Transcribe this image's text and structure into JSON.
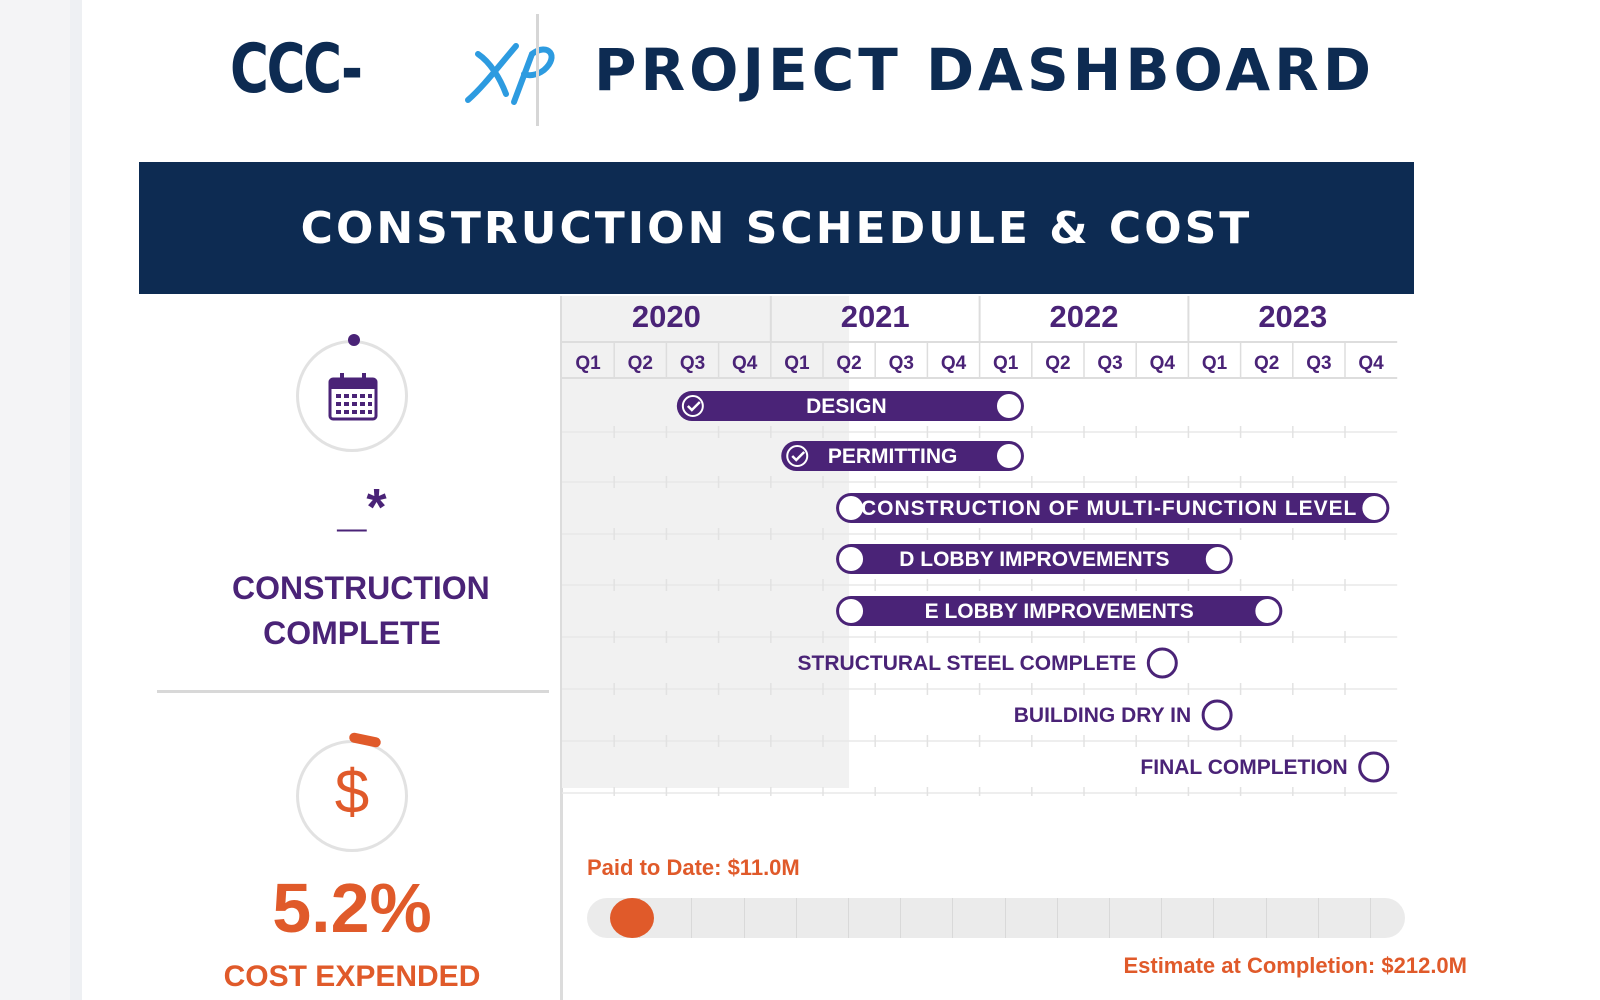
{
  "header": {
    "logo_text": "CCC-",
    "logo_script": "XP",
    "title": "PROJECT DASHBOARD"
  },
  "banner": {
    "title": "CONSTRUCTION SCHEDULE & COST"
  },
  "schedule_panel": {
    "icon": "calendar-icon",
    "value": "_*",
    "label_line1": "CONSTRUCTION",
    "label_line2": "COMPLETE"
  },
  "cost_panel": {
    "icon": "dollar-icon",
    "value": "5.2%",
    "label": "COST EXPENDED",
    "paid_label": "Paid to Date: $11.0M",
    "estimate_label": "Estimate at Completion: $212.0M",
    "paid_fraction": 0.052
  },
  "timeline": {
    "years": [
      "2020",
      "2021",
      "2022",
      "2023"
    ],
    "quarters": [
      "Q1",
      "Q2",
      "Q3",
      "Q4",
      "Q1",
      "Q2",
      "Q3",
      "Q4",
      "Q1",
      "Q2",
      "Q3",
      "Q4",
      "Q1",
      "Q2",
      "Q3",
      "Q4"
    ],
    "elapsed_through_quarter": 5.5,
    "tasks": [
      {
        "label": "DESIGN",
        "start_q": 2.2,
        "end_q": 8.85,
        "status": "complete"
      },
      {
        "label": "PERMITTING",
        "start_q": 4.2,
        "end_q": 8.85,
        "status": "complete"
      },
      {
        "label": "CONSTRUCTION OF MULTI-FUNCTION LEVEL",
        "start_q": 5.25,
        "end_q": 15.85,
        "status": "planned"
      },
      {
        "label": "D LOBBY IMPROVEMENTS",
        "start_q": 5.25,
        "end_q": 12.85,
        "status": "planned"
      },
      {
        "label": "E LOBBY IMPROVEMENTS",
        "start_q": 5.25,
        "end_q": 13.8,
        "status": "planned"
      }
    ],
    "milestones": [
      {
        "label": "STRUCTURAL STEEL COMPLETE",
        "at_q": 11.5
      },
      {
        "label": "BUILDING DRY IN",
        "at_q": 12.55
      },
      {
        "label": "FINAL COMPLETION",
        "at_q": 15.55
      }
    ]
  },
  "colors": {
    "navy": "#0d2b52",
    "purple": "#4a2377",
    "orange": "#e05a2a",
    "logo_blue": "#2d9be0"
  }
}
